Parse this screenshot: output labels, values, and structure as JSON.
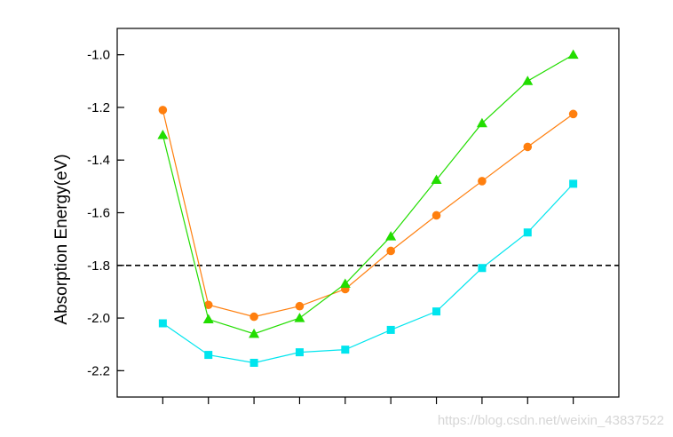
{
  "chart_data": {
    "type": "line",
    "title": "",
    "xlabel": "",
    "ylabel": "Absorption Energy(eV)",
    "ylim": [
      -2.3,
      -0.9
    ],
    "yticks": [
      -2.2,
      -2.0,
      -1.8,
      -1.6,
      -1.4,
      -1.2,
      -1.0
    ],
    "ytick_labels": [
      "-2.2",
      "-2.0",
      "-1.8",
      "-1.6",
      "-1.4",
      "-1.2",
      "-1.0"
    ],
    "xlim": [
      0,
      11
    ],
    "x": [
      1,
      2,
      3,
      4,
      5,
      6,
      7,
      8,
      9,
      10
    ],
    "x_tick_labels_shown": false,
    "grid": false,
    "legend": false,
    "reference_line": {
      "y": -1.8,
      "style": "dashed",
      "color": "#000000"
    },
    "series": [
      {
        "color": "#ff7f0e",
        "marker": "circle",
        "values": [
          -1.21,
          -1.95,
          -1.995,
          -1.955,
          -1.89,
          -1.745,
          -1.61,
          -1.48,
          -1.35,
          -1.225
        ]
      },
      {
        "color": "#22dd00",
        "marker": "triangle",
        "values": [
          -1.305,
          -2.005,
          -2.06,
          -2.0,
          -1.87,
          -1.69,
          -1.475,
          -1.26,
          -1.1,
          -1.0
        ]
      },
      {
        "color": "#00e5ee",
        "marker": "square",
        "values": [
          -2.02,
          -2.14,
          -2.17,
          -2.13,
          -2.12,
          -2.045,
          -1.975,
          -1.81,
          -1.675,
          -1.49
        ]
      }
    ]
  },
  "watermark": "https://blog.csdn.net/weixin_43837522"
}
